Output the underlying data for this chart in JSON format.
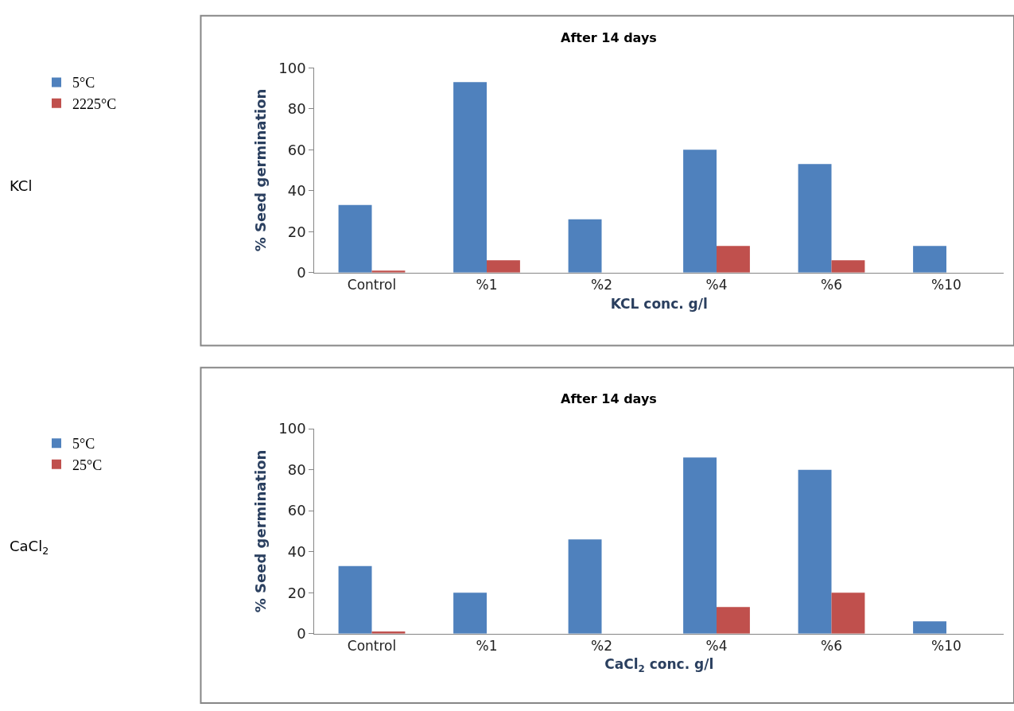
{
  "chart_data": [
    {
      "type": "bar",
      "title": "After 14 days",
      "xlabel": "KCL conc. g/l",
      "ylabel": "% Seed germination",
      "categories": [
        "Control",
        "%1",
        "%2",
        "%4",
        "%6",
        "%10"
      ],
      "series": [
        {
          "name": "5°C",
          "color": "#4f81bd",
          "values": [
            33,
            93,
            26,
            60,
            53,
            13
          ]
        },
        {
          "name": "2225°C",
          "color": "#c0504d",
          "values": [
            1,
            6,
            0,
            13,
            6,
            0
          ]
        }
      ],
      "ylim": [
        0,
        100
      ],
      "yticks": [
        0,
        20,
        40,
        60,
        80,
        100
      ],
      "grid": false,
      "legend": "left",
      "annotations": [
        "KCl"
      ]
    },
    {
      "type": "bar",
      "title": "After 14 days",
      "xlabel": "CaCl$_{2}$ conc. g/l",
      "ylabel": "% Seed germination",
      "categories": [
        "Control",
        "%1",
        "%2",
        "%4",
        "%6",
        "%10"
      ],
      "series": [
        {
          "name": "5°C",
          "color": "#4f81bd",
          "values": [
            33,
            20,
            46,
            86,
            80,
            6
          ]
        },
        {
          "name": "25°C",
          "color": "#c0504d",
          "values": [
            1,
            0,
            0,
            13,
            20,
            0
          ]
        }
      ],
      "ylim": [
        0,
        100
      ],
      "yticks": [
        0,
        20,
        40,
        60,
        80,
        100
      ],
      "grid": false,
      "legend": "left",
      "annotations": [
        "CaCl$_{2}$"
      ]
    }
  ]
}
